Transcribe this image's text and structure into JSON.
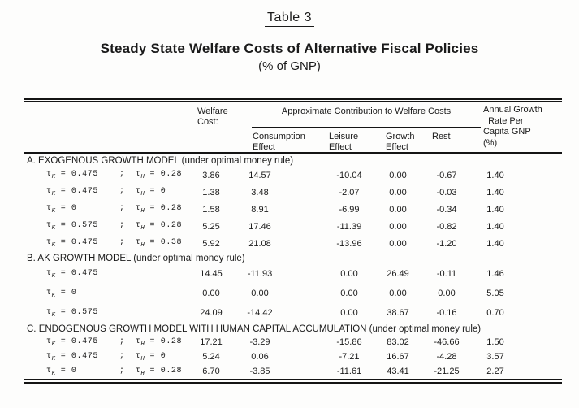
{
  "page": {
    "table_label": "Table 3",
    "title": "Steady State Welfare Costs of Alternative Fiscal Policies",
    "subtitle": "(% of GNP)"
  },
  "symbols": {
    "tau": "τ",
    "sub_k": "K",
    "sub_h": "H",
    "eq": "=",
    "sep": ";"
  },
  "header": {
    "welfare": [
      "Welfare",
      "Cost:"
    ],
    "group": "Approximate Contribution to Welfare Costs",
    "subcols": [
      [
        "Consumption",
        "Effect"
      ],
      [
        "Leisure",
        "Effect"
      ],
      [
        "Growth",
        "Effect"
      ],
      [
        "Rest"
      ]
    ],
    "annual": [
      "Annual Growth",
      "  Rate Per",
      "Capita GNP",
      "(%)"
    ]
  },
  "columns": [
    "welfare-cost",
    "consumption-effect",
    "leisure-effect",
    "growth-effect",
    "rest",
    "annual-growth"
  ],
  "sections": [
    {
      "heading": "A. EXOGENOUS GROWTH MODEL (under optimal money rule)",
      "rows": [
        {
          "tau_k": "0.475",
          "tau_h": "0.28",
          "values": [
            "3.86",
            "14.57",
            "-10.04",
            "0.00",
            "-0.67",
            "1.40"
          ]
        },
        {
          "tau_k": "0.475",
          "tau_h": "0",
          "values": [
            "1.38",
            "3.48",
            "-2.07",
            "0.00",
            "-0.03",
            "1.40"
          ]
        },
        {
          "tau_k": "0",
          "tau_h": "0.28",
          "values": [
            "1.58",
            "8.91",
            "-6.99",
            "0.00",
            "-0.34",
            "1.40"
          ]
        },
        {
          "tau_k": "0.575",
          "tau_h": "0.28",
          "values": [
            "5.25",
            "17.46",
            "-11.39",
            "0.00",
            "-0.82",
            "1.40"
          ]
        },
        {
          "tau_k": "0.475",
          "tau_h": "0.38",
          "values": [
            "5.92",
            "21.08",
            "-13.96",
            "0.00",
            "-1.20",
            "1.40"
          ]
        }
      ]
    },
    {
      "heading": "B. AK GROWTH MODEL (under optimal money rule)",
      "rows": [
        {
          "tau_k": "0.475",
          "values": [
            "14.45",
            "-11.93",
            "0.00",
            "26.49",
            "-0.11",
            "1.46"
          ]
        },
        {
          "tau_k": "0",
          "values": [
            "0.00",
            "0.00",
            "0.00",
            "0.00",
            "0.00",
            "5.05"
          ]
        },
        {
          "tau_k": "0.575",
          "values": [
            "24.09",
            "-14.42",
            "0.00",
            "38.67",
            "-0.16",
            "0.70"
          ]
        }
      ]
    },
    {
      "heading": "C. ENDOGENOUS GROWTH MODEL WITH HUMAN CAPITAL ACCUMULATION (under optimal money rule)",
      "rows": [
        {
          "tau_k": "0.475",
          "tau_h": "0.28",
          "values": [
            "17.21",
            "-3.29",
            "-15.86",
            "83.02",
            "-46.66",
            "1.50"
          ]
        },
        {
          "tau_k": "0.475",
          "tau_h": "0",
          "values": [
            "5.24",
            "0.06",
            "-7.21",
            "16.67",
            "-4.28",
            "3.57"
          ]
        },
        {
          "tau_k": "0",
          "tau_h": "0.28",
          "values": [
            "6.70",
            "-3.85",
            "-11.61",
            "43.41",
            "-21.25",
            "2.27"
          ]
        }
      ]
    }
  ]
}
